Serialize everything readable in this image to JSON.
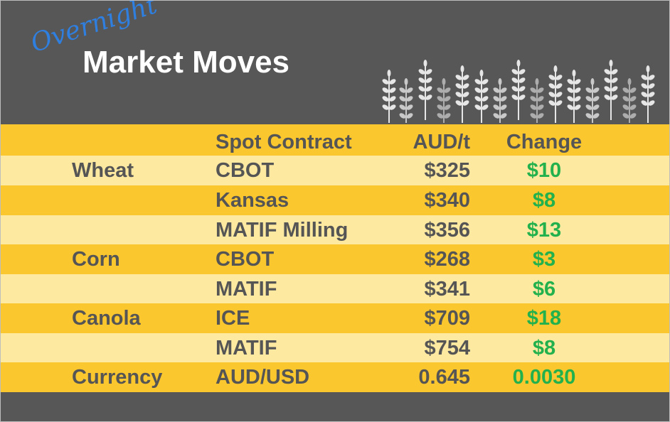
{
  "header": {
    "script_title": "Overnight",
    "title": "Market Moves"
  },
  "table": {
    "columns": [
      "Spot Contract",
      "AUD/t",
      "Change"
    ],
    "rows": [
      [
        "Wheat",
        "CBOT",
        "$325",
        "$10"
      ],
      [
        null,
        "Kansas",
        "$340",
        "$8"
      ],
      [
        null,
        "MATIF Milling",
        "$356",
        "$13"
      ],
      [
        "Corn",
        "CBOT",
        "$268",
        "$3"
      ],
      [
        null,
        "MATIF",
        "$341",
        "$6"
      ],
      [
        "Canola",
        "ICE",
        "$709",
        "$18"
      ],
      [
        null,
        "MATIF",
        "$754",
        "$8"
      ],
      [
        "Currency",
        "AUD/USD",
        "0.645",
        "0.0030"
      ]
    ]
  }
}
